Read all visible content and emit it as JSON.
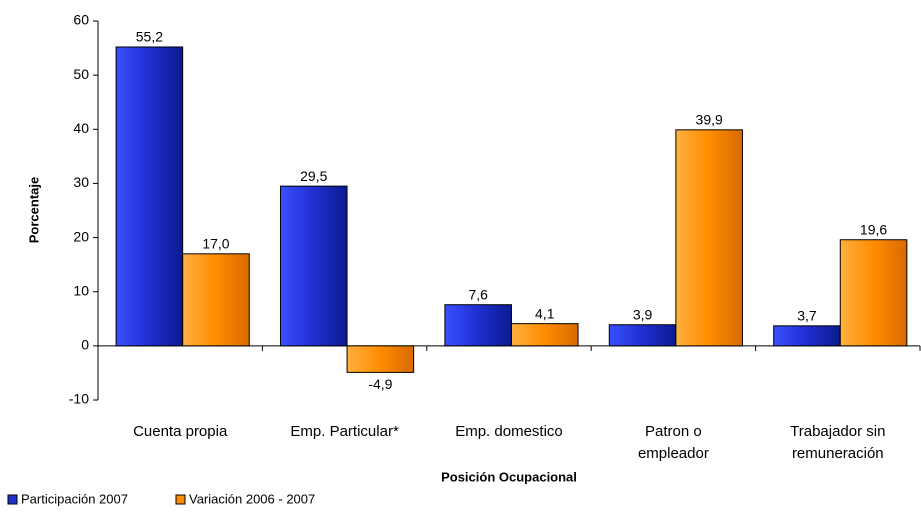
{
  "chart_data": {
    "type": "bar",
    "x_label": "Posición Ocupacional",
    "y_label": "Porcentaje",
    "categories": [
      "Cuenta propia",
      "Emp. Particular*",
      "Emp. domestico",
      "Patron o empleador",
      "Trabajador  sin remuneración"
    ],
    "series": [
      {
        "name": "Participación 2007",
        "color": "#1f2fd0",
        "values": [
          55.2,
          29.5,
          7.6,
          3.9,
          3.7
        ],
        "value_labels": [
          "55,2",
          "29,5",
          "7,6",
          "3,9",
          "3,7"
        ]
      },
      {
        "name": "Variación 2006 - 2007",
        "color": "#ff8c00",
        "values": [
          17.0,
          -4.9,
          4.1,
          39.9,
          19.6
        ],
        "value_labels": [
          "17,0",
          "-4,9",
          "4,1",
          "39,9",
          "19,6"
        ]
      }
    ],
    "ylim": [
      -10,
      60
    ],
    "yticks": [
      -10,
      0,
      10,
      20,
      30,
      40,
      50,
      60
    ],
    "legend": "bottom-left"
  }
}
